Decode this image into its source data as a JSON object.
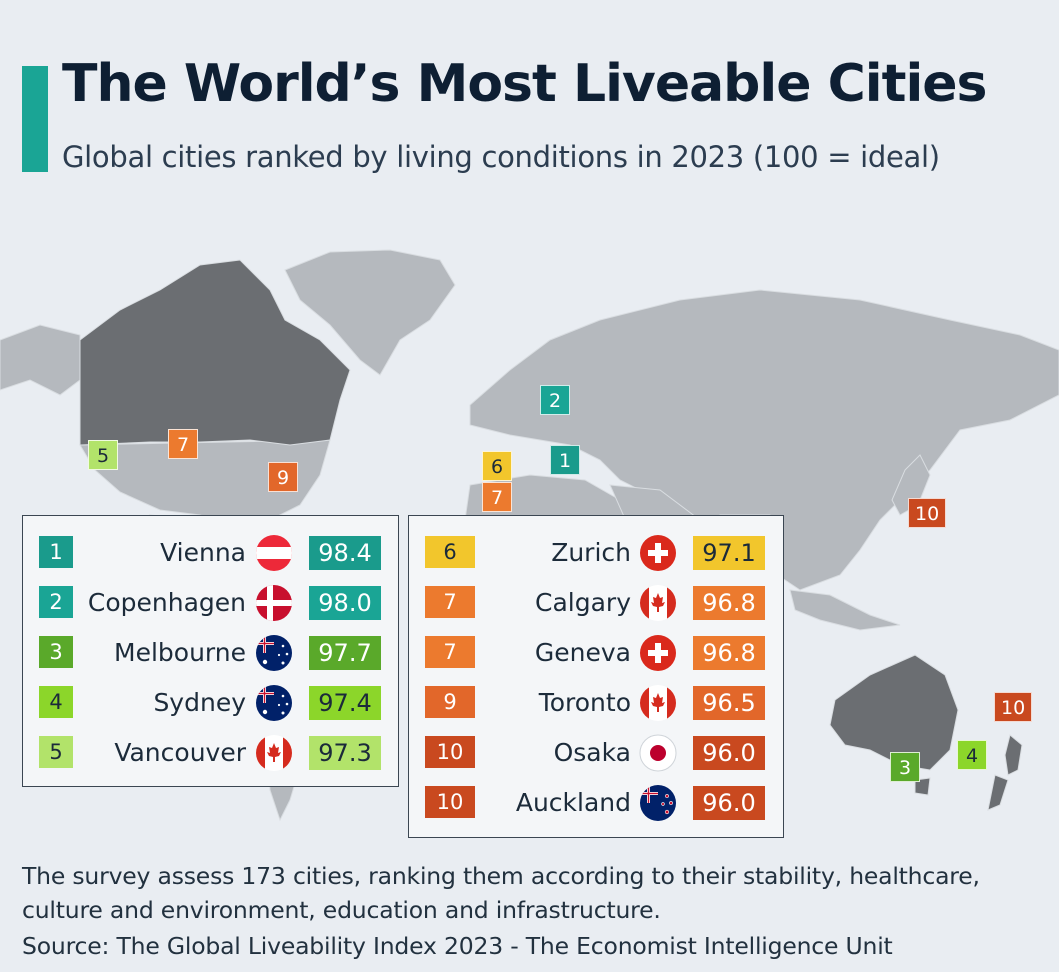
{
  "title": "The World’s Most Liveable Cities",
  "subtitle": "Global cities ranked by living conditions in 2023 (100 = ideal)",
  "description_line1": "The survey assess 173 cities, ranking them according to their stability, healthcare,",
  "description_line2": "culture and environment, education and infrastructure.",
  "source": "Source: The Global Liveability Index 2023 - The Economist Intelligence Unit",
  "colors": {
    "accent": "#1aa595",
    "land": "#b5b9be",
    "highlight_land": "#6b6e72",
    "ocean": "#e9edf2"
  },
  "map_markers": [
    {
      "label": "1",
      "city": "Vienna",
      "color": "#1a9b8c"
    },
    {
      "label": "2",
      "city": "Copenhagen",
      "color": "#1aa595"
    },
    {
      "label": "3",
      "city": "Melbourne",
      "color": "#5aa92a"
    },
    {
      "label": "4",
      "city": "Sydney",
      "color": "#8cd62a"
    },
    {
      "label": "5",
      "city": "Vancouver",
      "color": "#b2e36a"
    },
    {
      "label": "6",
      "city": "Zurich",
      "color": "#f2c62c"
    },
    {
      "label": "7",
      "city": "Calgary",
      "color": "#ec7a2e"
    },
    {
      "label": "7",
      "city": "Geneva",
      "color": "#ec7a2e"
    },
    {
      "label": "9",
      "city": "Toronto",
      "color": "#e2672a"
    },
    {
      "label": "10",
      "city": "Osaka",
      "color": "#c9491f"
    },
    {
      "label": "10",
      "city": "Auckland",
      "color": "#c9491f"
    }
  ],
  "rankings_left": [
    {
      "rank": "1",
      "city": "Vienna",
      "flag": "austria-flag-icon",
      "score": "98.4",
      "color": "#1a9b8c"
    },
    {
      "rank": "2",
      "city": "Copenhagen",
      "flag": "denmark-flag-icon",
      "score": "98.0",
      "color": "#1aa595"
    },
    {
      "rank": "3",
      "city": "Melbourne",
      "flag": "australia-flag-icon",
      "score": "97.7",
      "color": "#5aa92a"
    },
    {
      "rank": "4",
      "city": "Sydney",
      "flag": "australia-flag-icon",
      "score": "97.4",
      "color": "#8cd62a"
    },
    {
      "rank": "5",
      "city": "Vancouver",
      "flag": "canada-flag-icon",
      "score": "97.3",
      "color": "#b2e36a"
    }
  ],
  "rankings_right": [
    {
      "rank": "6",
      "city": "Zurich",
      "flag": "switzerland-flag-icon",
      "score": "97.1",
      "color": "#f2c62c"
    },
    {
      "rank": "7",
      "city": "Calgary",
      "flag": "canada-flag-icon",
      "score": "96.8",
      "color": "#ec7a2e"
    },
    {
      "rank": "7",
      "city": "Geneva",
      "flag": "switzerland-flag-icon",
      "score": "96.8",
      "color": "#ec7a2e"
    },
    {
      "rank": "9",
      "city": "Toronto",
      "flag": "canada-flag-icon",
      "score": "96.5",
      "color": "#e2672a"
    },
    {
      "rank": "10",
      "city": "Osaka",
      "flag": "japan-flag-icon",
      "score": "96.0",
      "color": "#c9491f"
    },
    {
      "rank": "10",
      "city": "Auckland",
      "flag": "new-zealand-flag-icon",
      "score": "96.0",
      "color": "#c9491f"
    }
  ]
}
